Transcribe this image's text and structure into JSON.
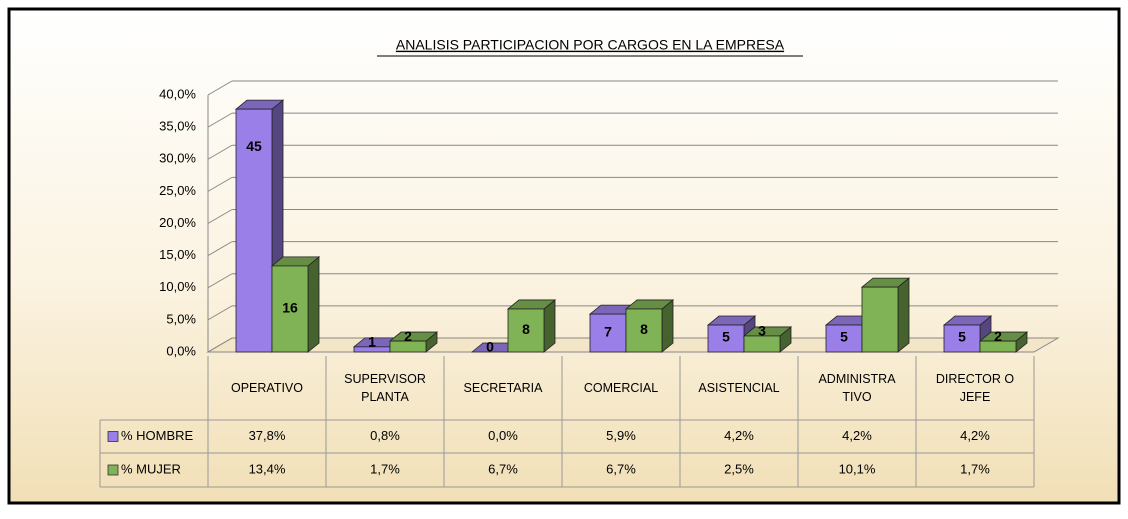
{
  "chart_data": {
    "type": "bar3d",
    "title": "ANALISIS PARTICIPACION POR CARGOS EN LA EMPRESA",
    "categories": [
      "OPERATIVO",
      "SUPERVISOR PLANTA",
      "SECRETARIA",
      "COMERCIAL",
      "ASISTENCIAL",
      "ADMINISTRA TIVO",
      "DIRECTOR O JEFE"
    ],
    "series": [
      {
        "name": "% HOMBRE",
        "color": "#9b7fe8",
        "values": [
          37.8,
          0.8,
          0.0,
          5.9,
          4.2,
          4.2,
          4.2
        ],
        "value_labels": [
          "37,8%",
          "0,8%",
          "0,0%",
          "5,9%",
          "4,2%",
          "4,2%",
          "4,2%"
        ],
        "counts": [
          45,
          1,
          0,
          7,
          5,
          5,
          5
        ]
      },
      {
        "name": "% MUJER",
        "color": "#7fb356",
        "values": [
          13.4,
          1.7,
          6.7,
          6.7,
          2.5,
          10.1,
          1.7
        ],
        "value_labels": [
          "13,4%",
          "1,7%",
          "6,7%",
          "6,7%",
          "2,5%",
          "10,1%",
          "1,7%"
        ],
        "counts": [
          16,
          2,
          8,
          8,
          3,
          null,
          2
        ]
      }
    ],
    "ylim": [
      0,
      40
    ],
    "yticks": [
      {
        "value": 0,
        "label": "0,0%"
      },
      {
        "value": 5,
        "label": "5,0%"
      },
      {
        "value": 10,
        "label": "10,0%"
      },
      {
        "value": 15,
        "label": "15,0%"
      },
      {
        "value": 20,
        "label": "20,0%"
      },
      {
        "value": 25,
        "label": "25,0%"
      },
      {
        "value": 30,
        "label": "30,0%"
      },
      {
        "value": 35,
        "label": "35,0%"
      },
      {
        "value": 40,
        "label": "40,0%"
      }
    ],
    "grid": true
  }
}
